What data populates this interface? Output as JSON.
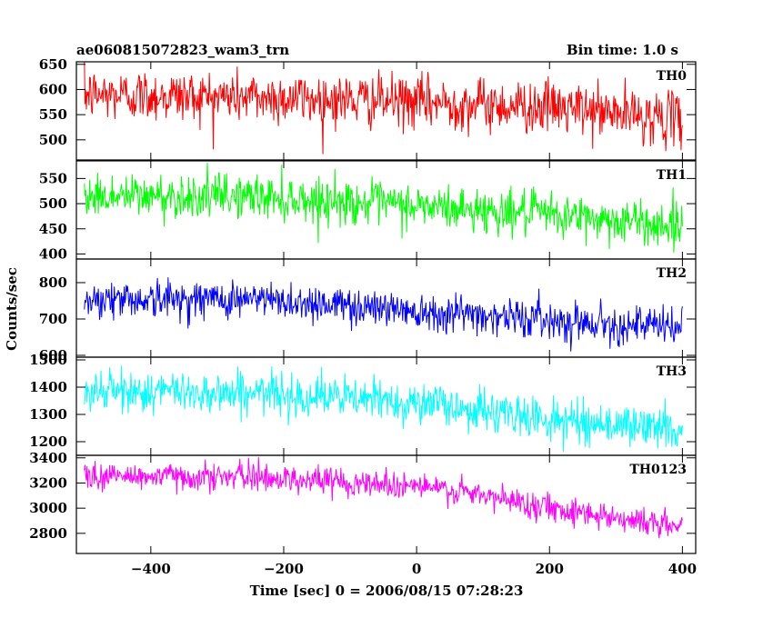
{
  "header": {
    "title": "ae060815072823_wam3_trn",
    "bin_time": "Bin time: 1.0 s"
  },
  "chart_data": {
    "type": "line",
    "title": "ae060815072823_wam3_trn",
    "subtitle": "Bin time: 1.0 s",
    "xlabel": "Time [sec] 0 = 2006/08/15 07:28:23",
    "ylabel": "Counts/sec",
    "xlim": [
      -512,
      420
    ],
    "x_ticks": [
      -400,
      -200,
      0,
      200,
      400
    ],
    "x_tick_labels": [
      "−400",
      "−200",
      "0",
      "200",
      "400"
    ],
    "bin_seconds": 1.0,
    "x_range": [
      -500,
      400
    ],
    "grid": false,
    "legend": "none",
    "panels": [
      {
        "name": "TH0",
        "color": "#ff0000",
        "ylim": [
          460,
          655
        ],
        "y_ticks": [
          500,
          550,
          600,
          650
        ],
        "trend": [
          [
            -500,
            590
          ],
          [
            -250,
            585
          ],
          [
            0,
            575
          ],
          [
            200,
            565
          ],
          [
            400,
            540
          ]
        ],
        "noise_sd": 26
      },
      {
        "name": "TH1",
        "color": "#00ff00",
        "ylim": [
          390,
          585
        ],
        "y_ticks": [
          400,
          450,
          500,
          550
        ],
        "trend": [
          [
            -500,
            515
          ],
          [
            -250,
            515
          ],
          [
            0,
            495
          ],
          [
            200,
            478
          ],
          [
            400,
            455
          ]
        ],
        "noise_sd": 22
      },
      {
        "name": "TH2",
        "color": "#0000ff",
        "ylim": [
          595,
          865
        ],
        "y_ticks": [
          600,
          700,
          800
        ],
        "trend": [
          [
            -500,
            755
          ],
          [
            -250,
            755
          ],
          [
            0,
            725
          ],
          [
            200,
            698
          ],
          [
            400,
            675
          ]
        ],
        "noise_sd": 26
      },
      {
        "name": "TH3",
        "color": "#00ffff",
        "ylim": [
          1150,
          1510
        ],
        "y_ticks": [
          1200,
          1300,
          1400,
          1500
        ],
        "trend": [
          [
            -500,
            1385
          ],
          [
            -250,
            1380
          ],
          [
            0,
            1345
          ],
          [
            200,
            1280
          ],
          [
            400,
            1245
          ]
        ],
        "noise_sd": 38
      },
      {
        "name": "TH0123",
        "color": "#ff00ff",
        "ylim": [
          2640,
          3420
        ],
        "y_ticks": [
          2800,
          3000,
          3200,
          3400
        ],
        "trend": [
          [
            -500,
            3255
          ],
          [
            -250,
            3250
          ],
          [
            0,
            3180
          ],
          [
            200,
            3010
          ],
          [
            400,
            2845
          ]
        ],
        "noise_sd": 55
      }
    ]
  }
}
